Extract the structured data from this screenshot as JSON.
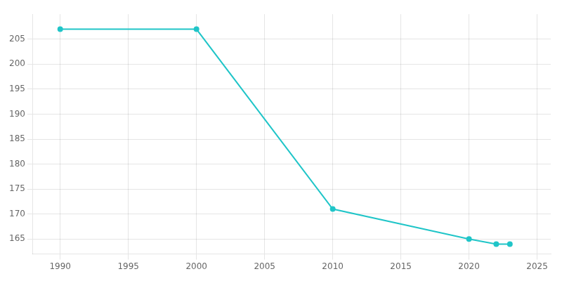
{
  "chart_data": {
    "type": "line",
    "x": [
      1990,
      2000,
      2010,
      2020,
      2022,
      2023
    ],
    "values": [
      207,
      207,
      171,
      165,
      164,
      164
    ],
    "color": "#20C5C8",
    "marker": "circle",
    "xlim": [
      1988,
      2026
    ],
    "xticks": [
      1990,
      1995,
      2000,
      2005,
      2010,
      2015,
      2020,
      2025
    ],
    "ylim": [
      162,
      210
    ],
    "yticks": [
      165,
      170,
      175,
      180,
      185,
      190,
      195,
      200,
      205
    ],
    "grid": true
  }
}
